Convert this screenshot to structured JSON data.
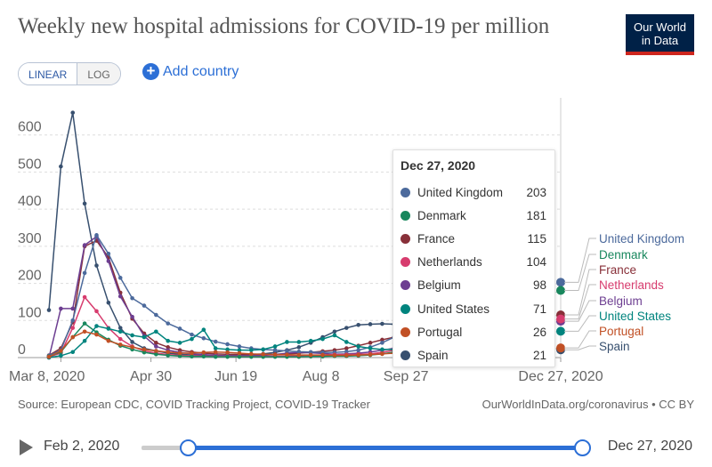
{
  "header": {
    "title": "Weekly new hospital admissions for COVID-19 per million",
    "logo_line1": "Our World",
    "logo_line2": "in Data"
  },
  "controls": {
    "scale_options": [
      "LINEAR",
      "LOG"
    ],
    "active_scale": "LINEAR",
    "add_country_label": "Add country",
    "add_country_icon": "plus-circle-icon"
  },
  "chart_data": {
    "type": "line",
    "title": "Weekly new hospital admissions for COVID-19 per million",
    "xlabel": "",
    "ylabel": "",
    "ylim": [
      0,
      700
    ],
    "y_ticks": [
      0,
      100,
      200,
      300,
      400,
      500,
      600
    ],
    "x_ticks": [
      "Mar 8, 2020",
      "Apr 30",
      "Jun 19",
      "Aug 8",
      "Sep 27",
      "Dec 27, 2020"
    ],
    "x_tick_dates": [
      "2020-03-08",
      "2020-04-30",
      "2020-06-19",
      "2020-08-08",
      "2020-09-27",
      "2020-12-27"
    ],
    "x_range": [
      "2020-03-01",
      "2020-12-27"
    ],
    "grid": "horizontal",
    "legend": "right",
    "series": [
      {
        "name": "Spain",
        "color": "#38506f",
        "final": 21,
        "dates": [
          "2020-03-01",
          "2020-03-08",
          "2020-03-15",
          "2020-03-22",
          "2020-03-29",
          "2020-04-05",
          "2020-04-12",
          "2020-04-19",
          "2020-04-26",
          "2020-05-03",
          "2020-05-10",
          "2020-05-17",
          "2020-05-24",
          "2020-05-31",
          "2020-06-07",
          "2020-06-14",
          "2020-06-21",
          "2020-06-28",
          "2020-07-05",
          "2020-07-12",
          "2020-07-19",
          "2020-07-26",
          "2020-08-02",
          "2020-08-09",
          "2020-08-16",
          "2020-08-23",
          "2020-08-30",
          "2020-09-06",
          "2020-09-13",
          "2020-09-20",
          "2020-09-27",
          "2020-12-27"
        ],
        "values": [
          128,
          515,
          660,
          415,
          248,
          148,
          80,
          42,
          25,
          18,
          12,
          9,
          7,
          6,
          5,
          5,
          6,
          8,
          10,
          14,
          20,
          28,
          40,
          55,
          70,
          80,
          88,
          90,
          91,
          90,
          88,
          21
        ]
      },
      {
        "name": "France",
        "color": "#883039",
        "final": 115,
        "dates": [
          "2020-03-01",
          "2020-03-08",
          "2020-03-15",
          "2020-03-22",
          "2020-03-29",
          "2020-04-05",
          "2020-04-12",
          "2020-04-19",
          "2020-04-26",
          "2020-05-03",
          "2020-05-10",
          "2020-05-17",
          "2020-05-24",
          "2020-05-31",
          "2020-06-07",
          "2020-06-14",
          "2020-06-21",
          "2020-06-28",
          "2020-07-05",
          "2020-07-12",
          "2020-07-19",
          "2020-07-26",
          "2020-08-02",
          "2020-08-09",
          "2020-08-16",
          "2020-08-23",
          "2020-08-30",
          "2020-09-06",
          "2020-09-13",
          "2020-09-20",
          "2020-09-27",
          "2020-12-27"
        ],
        "values": [
          6,
          25,
          95,
          300,
          315,
          270,
          175,
          105,
          65,
          40,
          28,
          20,
          15,
          12,
          10,
          9,
          8,
          8,
          8,
          9,
          10,
          12,
          14,
          17,
          20,
          25,
          32,
          40,
          48,
          55,
          60,
          115
        ]
      },
      {
        "name": "Belgium",
        "color": "#6d3e91",
        "final": 98,
        "dates": [
          "2020-03-01",
          "2020-03-08",
          "2020-03-15",
          "2020-03-22",
          "2020-03-29",
          "2020-04-05",
          "2020-04-12",
          "2020-04-19",
          "2020-04-26",
          "2020-05-03",
          "2020-05-10",
          "2020-05-17",
          "2020-05-24",
          "2020-05-31",
          "2020-06-07",
          "2020-06-14",
          "2020-06-21",
          "2020-06-28",
          "2020-07-05",
          "2020-07-12",
          "2020-07-19",
          "2020-07-26",
          "2020-08-02",
          "2020-08-09",
          "2020-08-16",
          "2020-08-23",
          "2020-08-30",
          "2020-09-06",
          "2020-09-13",
          "2020-09-20",
          "2020-09-27",
          "2020-12-27"
        ],
        "values": [
          0,
          132,
          132,
          303,
          326,
          260,
          165,
          110,
          58,
          30,
          20,
          14,
          10,
          8,
          6,
          5,
          5,
          5,
          6,
          8,
          12,
          14,
          13,
          11,
          9,
          10,
          12,
          15,
          20,
          25,
          35,
          98
        ]
      },
      {
        "name": "United Kingdom",
        "color": "#4c6a9c",
        "final": 203,
        "dates": [
          "2020-03-01",
          "2020-03-08",
          "2020-03-15",
          "2020-03-22",
          "2020-03-29",
          "2020-04-05",
          "2020-04-12",
          "2020-04-19",
          "2020-04-26",
          "2020-05-03",
          "2020-05-10",
          "2020-05-17",
          "2020-05-24",
          "2020-05-31",
          "2020-06-07",
          "2020-06-14",
          "2020-06-21",
          "2020-06-28",
          "2020-07-05",
          "2020-07-12",
          "2020-07-19",
          "2020-07-26",
          "2020-08-02",
          "2020-08-09",
          "2020-08-16",
          "2020-08-23",
          "2020-08-30",
          "2020-09-06",
          "2020-09-13",
          "2020-09-20",
          "2020-09-27",
          "2020-12-27"
        ],
        "values": [
          5,
          20,
          100,
          228,
          330,
          280,
          215,
          160,
          140,
          115,
          92,
          78,
          62,
          52,
          43,
          36,
          30,
          25,
          22,
          20,
          18,
          16,
          15,
          14,
          14,
          16,
          20,
          28,
          40,
          55,
          75,
          203
        ]
      },
      {
        "name": "Netherlands",
        "color": "#d73c6e",
        "final": 104,
        "dates": [
          "2020-03-01",
          "2020-03-08",
          "2020-03-15",
          "2020-03-22",
          "2020-03-29",
          "2020-04-05",
          "2020-04-12",
          "2020-04-19",
          "2020-04-26",
          "2020-05-03",
          "2020-05-10",
          "2020-05-17",
          "2020-05-24",
          "2020-05-31",
          "2020-06-07",
          "2020-06-14",
          "2020-06-21",
          "2020-06-28",
          "2020-07-05",
          "2020-07-12",
          "2020-07-19",
          "2020-07-26",
          "2020-08-02",
          "2020-08-09",
          "2020-08-16",
          "2020-08-23",
          "2020-08-30",
          "2020-09-06",
          "2020-09-13",
          "2020-09-20",
          "2020-09-27",
          "2020-12-27"
        ],
        "values": [
          2,
          12,
          80,
          163,
          125,
          80,
          50,
          30,
          18,
          12,
          8,
          6,
          5,
          4,
          3,
          3,
          3,
          3,
          3,
          4,
          4,
          5,
          6,
          7,
          8,
          8,
          9,
          10,
          14,
          20,
          30,
          104
        ]
      },
      {
        "name": "Denmark",
        "color": "#18875d",
        "final": 181,
        "dates": [
          "2020-03-01",
          "2020-03-08",
          "2020-03-15",
          "2020-03-22",
          "2020-03-29",
          "2020-04-05",
          "2020-04-12",
          "2020-04-19",
          "2020-04-26",
          "2020-05-03",
          "2020-05-10",
          "2020-05-17",
          "2020-05-24",
          "2020-05-31",
          "2020-06-07",
          "2020-06-14",
          "2020-06-21",
          "2020-06-28",
          "2020-07-05",
          "2020-07-12",
          "2020-07-19",
          "2020-07-26",
          "2020-08-02",
          "2020-08-09",
          "2020-08-16",
          "2020-08-23",
          "2020-08-30",
          "2020-09-06",
          "2020-09-13",
          "2020-09-20",
          "2020-09-27",
          "2020-12-27"
        ],
        "values": [
          3,
          15,
          55,
          92,
          68,
          48,
          32,
          22,
          14,
          9,
          6,
          4,
          3,
          3,
          2,
          2,
          2,
          2,
          2,
          2,
          2,
          2,
          3,
          3,
          4,
          4,
          5,
          7,
          10,
          15,
          22,
          181
        ]
      },
      {
        "name": "United States",
        "color": "#00847e",
        "final": 71,
        "dates": [
          "2020-03-01",
          "2020-03-08",
          "2020-03-15",
          "2020-03-22",
          "2020-03-29",
          "2020-04-05",
          "2020-04-12",
          "2020-04-19",
          "2020-04-26",
          "2020-05-03",
          "2020-05-10",
          "2020-05-17",
          "2020-05-24",
          "2020-05-31",
          "2020-06-07",
          "2020-06-14",
          "2020-06-21",
          "2020-06-28",
          "2020-07-05",
          "2020-07-12",
          "2020-07-19",
          "2020-07-26",
          "2020-08-02",
          "2020-08-09",
          "2020-08-16",
          "2020-08-23",
          "2020-08-30",
          "2020-09-06",
          "2020-09-13",
          "2020-09-20",
          "2020-09-27",
          "2020-12-27"
        ],
        "values": [
          0,
          5,
          15,
          45,
          85,
          78,
          70,
          60,
          55,
          70,
          45,
          40,
          50,
          75,
          25,
          22,
          20,
          20,
          22,
          30,
          42,
          42,
          45,
          50,
          60,
          42,
          30,
          25,
          22,
          22,
          24,
          71
        ]
      },
      {
        "name": "Portugal",
        "color": "#c15025",
        "final": 26,
        "dates": [
          "2020-03-01",
          "2020-03-08",
          "2020-03-15",
          "2020-03-22",
          "2020-03-29",
          "2020-04-05",
          "2020-04-12",
          "2020-04-19",
          "2020-04-26",
          "2020-05-03",
          "2020-05-10",
          "2020-05-17",
          "2020-05-24",
          "2020-05-31",
          "2020-06-07",
          "2020-06-14",
          "2020-06-21",
          "2020-06-28",
          "2020-07-05",
          "2020-07-12",
          "2020-07-19",
          "2020-07-26",
          "2020-08-02",
          "2020-08-09",
          "2020-08-16",
          "2020-08-23",
          "2020-08-30",
          "2020-09-06",
          "2020-09-13",
          "2020-09-20",
          "2020-09-27",
          "2020-12-27"
        ],
        "values": [
          2,
          18,
          55,
          70,
          62,
          45,
          35,
          28,
          22,
          18,
          15,
          12,
          12,
          14,
          15,
          14,
          12,
          10,
          9,
          8,
          8,
          7,
          7,
          7,
          6,
          6,
          7,
          8,
          10,
          12,
          14,
          26
        ]
      }
    ]
  },
  "tooltip": {
    "date": "Dec 27, 2020",
    "rows": [
      {
        "name": "United Kingdom",
        "value": "203",
        "color": "#4c6a9c"
      },
      {
        "name": "Denmark",
        "value": "181",
        "color": "#18875d"
      },
      {
        "name": "France",
        "value": "115",
        "color": "#883039"
      },
      {
        "name": "Netherlands",
        "value": "104",
        "color": "#d73c6e"
      },
      {
        "name": "Belgium",
        "value": "98",
        "color": "#6d3e91"
      },
      {
        "name": "United States",
        "value": "71",
        "color": "#00847e"
      },
      {
        "name": "Portugal",
        "value": "26",
        "color": "#c15025"
      },
      {
        "name": "Spain",
        "value": "21",
        "color": "#38506f"
      }
    ]
  },
  "footer": {
    "source": "Source: European CDC, COVID Tracking Project, COVID-19 Tracker",
    "url": "OurWorldInData.org/coronavirus • CC BY"
  },
  "timeline": {
    "start_label": "Feb 2, 2020",
    "end_label": "Dec 27, 2020",
    "play_icon": "play-icon"
  }
}
